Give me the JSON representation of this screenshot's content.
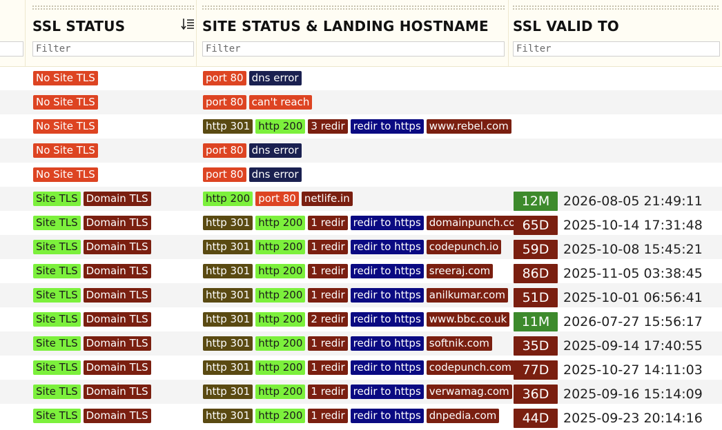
{
  "columns": {
    "ssl_status": {
      "title": "SSL STATUS",
      "filter_placeholder": "Filter"
    },
    "site_status": {
      "title": "SITE STATUS & LANDING HOSTNAME",
      "filter_placeholder": "Filter"
    },
    "ssl_valid_to": {
      "title": "SSL VALID TO",
      "filter_placeholder": "Filter"
    }
  },
  "colors": {
    "red": "#dd4422",
    "green": "#7cf03c",
    "maroon": "#7a1f10",
    "navy": "#1a2050",
    "olive": "#5a4a12",
    "blue": "#0a0a82",
    "expiry_green": "#3d8a2c"
  },
  "rows": [
    {
      "ssl": [
        {
          "text": "No Site TLS",
          "color": "red"
        }
      ],
      "site": [
        {
          "text": "port 80",
          "color": "red"
        },
        {
          "text": "dns error",
          "color": "navy"
        }
      ]
    },
    {
      "ssl": [
        {
          "text": "No Site TLS",
          "color": "red"
        }
      ],
      "site": [
        {
          "text": "port 80",
          "color": "red"
        },
        {
          "text": "can't reach",
          "color": "red"
        }
      ]
    },
    {
      "ssl": [
        {
          "text": "No Site TLS",
          "color": "red"
        }
      ],
      "site": [
        {
          "text": "http 301",
          "color": "olive"
        },
        {
          "text": "http 200",
          "color": "green"
        },
        {
          "text": "3 redir",
          "color": "maroon"
        },
        {
          "text": "redir to https",
          "color": "blue"
        },
        {
          "text": "www.rebel.com",
          "color": "maroon"
        }
      ]
    },
    {
      "ssl": [
        {
          "text": "No Site TLS",
          "color": "red"
        }
      ],
      "site": [
        {
          "text": "port 80",
          "color": "red"
        },
        {
          "text": "dns error",
          "color": "navy"
        }
      ]
    },
    {
      "ssl": [
        {
          "text": "No Site TLS",
          "color": "red"
        }
      ],
      "site": [
        {
          "text": "port 80",
          "color": "red"
        },
        {
          "text": "dns error",
          "color": "navy"
        }
      ]
    },
    {
      "ssl": [
        {
          "text": "Site TLS",
          "color": "green"
        },
        {
          "text": "Domain TLS",
          "color": "maroon"
        }
      ],
      "site": [
        {
          "text": "http 200",
          "color": "green"
        },
        {
          "text": "port 80",
          "color": "red"
        },
        {
          "text": "netlife.in",
          "color": "maroon"
        }
      ],
      "expiry": {
        "text": "12M",
        "color": "expiry_green"
      },
      "valid_to": "2026-08-05 21:49:11"
    },
    {
      "ssl": [
        {
          "text": "Site TLS",
          "color": "green"
        },
        {
          "text": "Domain TLS",
          "color": "maroon"
        }
      ],
      "site": [
        {
          "text": "http 301",
          "color": "olive"
        },
        {
          "text": "http 200",
          "color": "green"
        },
        {
          "text": "1 redir",
          "color": "maroon"
        },
        {
          "text": "redir to https",
          "color": "blue"
        },
        {
          "text": "domainpunch.com",
          "color": "maroon"
        }
      ],
      "expiry": {
        "text": "65D",
        "color": "maroon"
      },
      "valid_to": "2025-10-14 17:31:48"
    },
    {
      "ssl": [
        {
          "text": "Site TLS",
          "color": "green"
        },
        {
          "text": "Domain TLS",
          "color": "maroon"
        }
      ],
      "site": [
        {
          "text": "http 301",
          "color": "olive"
        },
        {
          "text": "http 200",
          "color": "green"
        },
        {
          "text": "1 redir",
          "color": "maroon"
        },
        {
          "text": "redir to https",
          "color": "blue"
        },
        {
          "text": "codepunch.io",
          "color": "maroon"
        }
      ],
      "expiry": {
        "text": "59D",
        "color": "maroon"
      },
      "valid_to": "2025-10-08 15:45:21"
    },
    {
      "ssl": [
        {
          "text": "Site TLS",
          "color": "green"
        },
        {
          "text": "Domain TLS",
          "color": "maroon"
        }
      ],
      "site": [
        {
          "text": "http 301",
          "color": "olive"
        },
        {
          "text": "http 200",
          "color": "green"
        },
        {
          "text": "1 redir",
          "color": "maroon"
        },
        {
          "text": "redir to https",
          "color": "blue"
        },
        {
          "text": "sreeraj.com",
          "color": "maroon"
        }
      ],
      "expiry": {
        "text": "86D",
        "color": "maroon"
      },
      "valid_to": "2025-11-05 03:38:45"
    },
    {
      "ssl": [
        {
          "text": "Site TLS",
          "color": "green"
        },
        {
          "text": "Domain TLS",
          "color": "maroon"
        }
      ],
      "site": [
        {
          "text": "http 301",
          "color": "olive"
        },
        {
          "text": "http 200",
          "color": "green"
        },
        {
          "text": "1 redir",
          "color": "maroon"
        },
        {
          "text": "redir to https",
          "color": "blue"
        },
        {
          "text": "anilkumar.com",
          "color": "maroon"
        }
      ],
      "expiry": {
        "text": "51D",
        "color": "maroon"
      },
      "valid_to": "2025-10-01 06:56:41"
    },
    {
      "ssl": [
        {
          "text": "Site TLS",
          "color": "green"
        },
        {
          "text": "Domain TLS",
          "color": "maroon"
        }
      ],
      "site": [
        {
          "text": "http 301",
          "color": "olive"
        },
        {
          "text": "http 200",
          "color": "green"
        },
        {
          "text": "2 redir",
          "color": "maroon"
        },
        {
          "text": "redir to https",
          "color": "blue"
        },
        {
          "text": "www.bbc.co.uk",
          "color": "maroon"
        }
      ],
      "expiry": {
        "text": "11M",
        "color": "expiry_green"
      },
      "valid_to": "2026-07-27 15:56:17"
    },
    {
      "ssl": [
        {
          "text": "Site TLS",
          "color": "green"
        },
        {
          "text": "Domain TLS",
          "color": "maroon"
        }
      ],
      "site": [
        {
          "text": "http 301",
          "color": "olive"
        },
        {
          "text": "http 200",
          "color": "green"
        },
        {
          "text": "1 redir",
          "color": "maroon"
        },
        {
          "text": "redir to https",
          "color": "blue"
        },
        {
          "text": "softnik.com",
          "color": "maroon"
        }
      ],
      "expiry": {
        "text": "35D",
        "color": "maroon"
      },
      "valid_to": "2025-09-14 17:40:55"
    },
    {
      "ssl": [
        {
          "text": "Site TLS",
          "color": "green"
        },
        {
          "text": "Domain TLS",
          "color": "maroon"
        }
      ],
      "site": [
        {
          "text": "http 301",
          "color": "olive"
        },
        {
          "text": "http 200",
          "color": "green"
        },
        {
          "text": "1 redir",
          "color": "maroon"
        },
        {
          "text": "redir to https",
          "color": "blue"
        },
        {
          "text": "codepunch.com",
          "color": "maroon"
        }
      ],
      "expiry": {
        "text": "77D",
        "color": "maroon"
      },
      "valid_to": "2025-10-27 14:11:03"
    },
    {
      "ssl": [
        {
          "text": "Site TLS",
          "color": "green"
        },
        {
          "text": "Domain TLS",
          "color": "maroon"
        }
      ],
      "site": [
        {
          "text": "http 301",
          "color": "olive"
        },
        {
          "text": "http 200",
          "color": "green"
        },
        {
          "text": "1 redir",
          "color": "maroon"
        },
        {
          "text": "redir to https",
          "color": "blue"
        },
        {
          "text": "verwamag.com",
          "color": "maroon"
        }
      ],
      "expiry": {
        "text": "36D",
        "color": "maroon"
      },
      "valid_to": "2025-09-16 15:14:09"
    },
    {
      "ssl": [
        {
          "text": "Site TLS",
          "color": "green"
        },
        {
          "text": "Domain TLS",
          "color": "maroon"
        }
      ],
      "site": [
        {
          "text": "http 301",
          "color": "olive"
        },
        {
          "text": "http 200",
          "color": "green"
        },
        {
          "text": "1 redir",
          "color": "maroon"
        },
        {
          "text": "redir to https",
          "color": "blue"
        },
        {
          "text": "dnpedia.com",
          "color": "maroon"
        }
      ],
      "expiry": {
        "text": "44D",
        "color": "maroon"
      },
      "valid_to": "2025-09-23 20:14:16"
    }
  ]
}
